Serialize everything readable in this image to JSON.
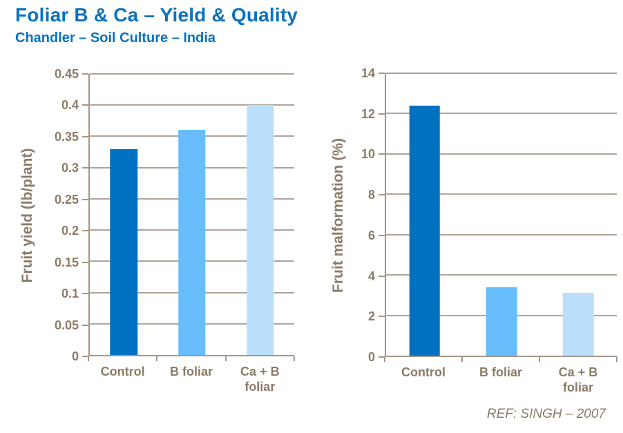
{
  "page": {
    "title": "Foliar B & Ca – Yield & Quality",
    "subtitle": "Chandler – Soil Culture – India",
    "reference": "REF:  SINGH – 2007"
  },
  "colors": {
    "title_blue": "#0C72BE",
    "axis_text": "#8C7B67",
    "axis_line": "#A3968A",
    "gridline": "#AFA497",
    "bar_colors": [
      "#0071C0",
      "#67BCFB",
      "#B9DFFC"
    ]
  },
  "chart_data": [
    {
      "type": "bar",
      "title": "",
      "categories": [
        "Control",
        "B foliar",
        "Ca + B foliar"
      ],
      "values": [
        0.33,
        0.36,
        0.4
      ],
      "xlabel": "",
      "ylabel": "Fruit yield (lb/plant)",
      "ylim": [
        0,
        0.45
      ],
      "ytick_step": 0.05,
      "grid": true,
      "legend": false
    },
    {
      "type": "bar",
      "title": "",
      "categories": [
        "Control",
        "B foliar",
        "Ca + B foliar"
      ],
      "values": [
        12.4,
        3.4,
        3.1
      ],
      "xlabel": "",
      "ylabel": "Fruit malformation (%)",
      "ylim": [
        0,
        14
      ],
      "ytick_step": 2,
      "grid": true,
      "legend": false
    }
  ]
}
